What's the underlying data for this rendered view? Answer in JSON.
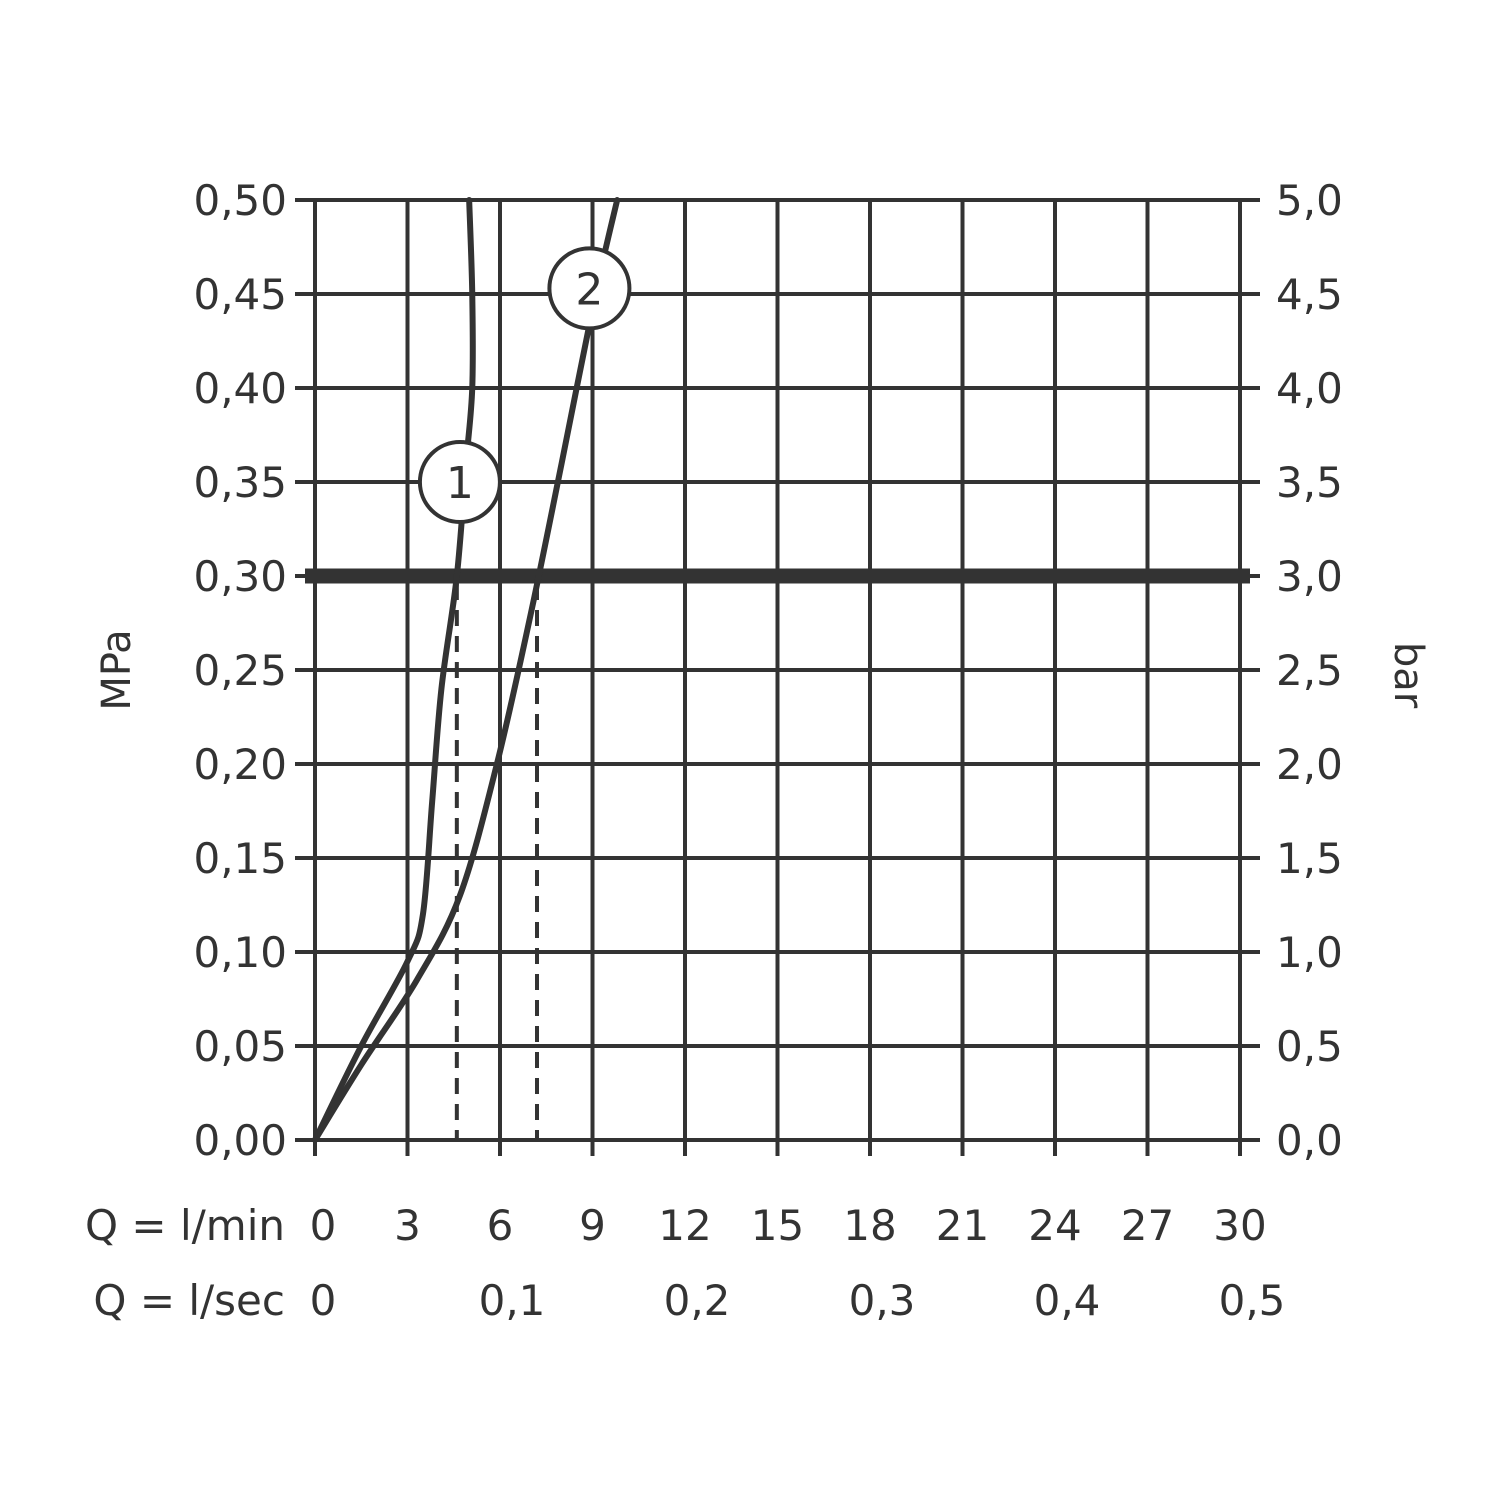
{
  "chart_data": {
    "type": "line",
    "title": "",
    "x_axis": {
      "range": [
        0,
        30
      ],
      "gridlines": [
        0,
        3,
        6,
        9,
        12,
        15,
        18,
        21,
        24,
        27,
        30
      ],
      "row_lmin": {
        "label": "Q = l/min",
        "ticks": [
          "0",
          "3",
          "6",
          "9",
          "12",
          "15",
          "18",
          "21",
          "24",
          "27",
          "30"
        ],
        "tick_values": [
          0,
          3,
          6,
          9,
          12,
          15,
          18,
          21,
          24,
          27,
          30
        ]
      },
      "row_lsec": {
        "label": "Q = l/sec",
        "ticks": [
          "0",
          "0,1",
          "0,2",
          "0,3",
          "0,4",
          "0,5"
        ],
        "tick_values": [
          0,
          6,
          12,
          18,
          24,
          30
        ]
      }
    },
    "y_axis_left": {
      "label": "MPa",
      "range": [
        0,
        0.5
      ],
      "ticks": [
        "0,00",
        "0,05",
        "0,10",
        "0,15",
        "0,20",
        "0,25",
        "0,30",
        "0,35",
        "0,40",
        "0,45",
        "0,50"
      ],
      "tick_values": [
        0,
        0.05,
        0.1,
        0.15,
        0.2,
        0.25,
        0.3,
        0.35,
        0.4,
        0.45,
        0.5
      ]
    },
    "y_axis_right": {
      "label": "bar",
      "ticks": [
        "0,0",
        "0,5",
        "1,0",
        "1,5",
        "2,0",
        "2,5",
        "3,0",
        "3,5",
        "4,0",
        "4,5",
        "5,0"
      ]
    },
    "grid": true,
    "reference_line": {
      "y": 0.3,
      "bold": true
    },
    "series": [
      {
        "badge": "1",
        "badge_at": {
          "x": 4.7,
          "y": 0.35
        },
        "points": [
          {
            "x": 0,
            "y": 0
          },
          {
            "x": 1.5,
            "y": 0.05
          },
          {
            "x": 3.0,
            "y": 0.095
          },
          {
            "x": 3.5,
            "y": 0.12
          },
          {
            "x": 3.8,
            "y": 0.18
          },
          {
            "x": 4.1,
            "y": 0.24
          },
          {
            "x": 4.6,
            "y": 0.3
          },
          {
            "x": 4.9,
            "y": 0.36
          },
          {
            "x": 5.1,
            "y": 0.4
          },
          {
            "x": 5.1,
            "y": 0.45
          },
          {
            "x": 5.0,
            "y": 0.5
          }
        ],
        "drop_line_x": 4.6
      },
      {
        "badge": "2",
        "badge_at": {
          "x": 8.9,
          "y": 0.453
        },
        "points": [
          {
            "x": 0,
            "y": 0
          },
          {
            "x": 1.5,
            "y": 0.04
          },
          {
            "x": 3.3,
            "y": 0.085
          },
          {
            "x": 4.7,
            "y": 0.13
          },
          {
            "x": 5.9,
            "y": 0.2
          },
          {
            "x": 7.0,
            "y": 0.28
          },
          {
            "x": 8.0,
            "y": 0.36
          },
          {
            "x": 9.1,
            "y": 0.45
          },
          {
            "x": 9.8,
            "y": 0.5
          }
        ],
        "drop_line_x": 7.2
      }
    ]
  }
}
